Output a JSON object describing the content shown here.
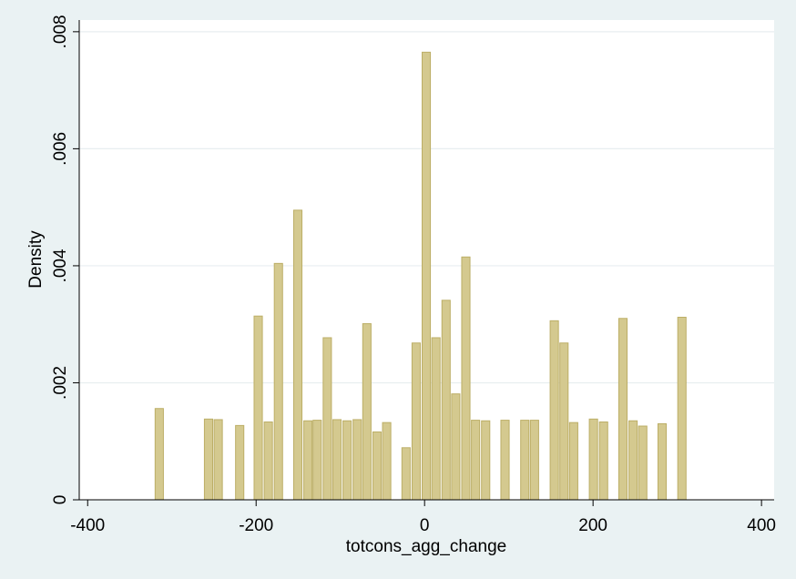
{
  "chart_data": {
    "type": "bar",
    "title": "",
    "xlabel": "totcons_agg_change",
    "ylabel": "Density",
    "xlim": [
      -410,
      415
    ],
    "ylim": [
      0,
      0.0082
    ],
    "x_ticks": [
      {
        "value": -400,
        "label": "-400"
      },
      {
        "value": -200,
        "label": "-200"
      },
      {
        "value": 0,
        "label": "0"
      },
      {
        "value": 200,
        "label": "200"
      },
      {
        "value": 400,
        "label": "400"
      }
    ],
    "y_ticks": [
      {
        "value": 0,
        "label": "0"
      },
      {
        "value": 0.002,
        "label": ".002"
      },
      {
        "value": 0.004,
        "label": ".004"
      },
      {
        "value": 0.006,
        "label": ".006"
      },
      {
        "value": 0.008,
        "label": ".008"
      }
    ],
    "grid": true,
    "bin_width": 10.9,
    "bars": [
      {
        "x": -315.0,
        "density": 0.00156
      },
      {
        "x": -256.5,
        "density": 0.00138
      },
      {
        "x": -245.0,
        "density": 0.00137
      },
      {
        "x": -219.5,
        "density": 0.00127
      },
      {
        "x": -197.5,
        "density": 0.00314
      },
      {
        "x": -185.5,
        "density": 0.00133
      },
      {
        "x": -173.5,
        "density": 0.00404
      },
      {
        "x": -150.5,
        "density": 0.00495
      },
      {
        "x": -138.5,
        "density": 0.00135
      },
      {
        "x": -127.5,
        "density": 0.00136
      },
      {
        "x": -115.5,
        "density": 0.00277
      },
      {
        "x": -104.0,
        "density": 0.00137
      },
      {
        "x": -92.0,
        "density": 0.00135
      },
      {
        "x": -80.0,
        "density": 0.00137
      },
      {
        "x": -68.5,
        "density": 0.00301
      },
      {
        "x": -56.5,
        "density": 0.00116
      },
      {
        "x": -45.0,
        "density": 0.00132
      },
      {
        "x": -22.0,
        "density": 0.00089
      },
      {
        "x": -10.0,
        "density": 0.00268
      },
      {
        "x": 2.0,
        "density": 0.00765
      },
      {
        "x": 13.5,
        "density": 0.00277
      },
      {
        "x": 25.5,
        "density": 0.00341
      },
      {
        "x": 37.0,
        "density": 0.00181
      },
      {
        "x": 49.0,
        "density": 0.00415
      },
      {
        "x": 60.5,
        "density": 0.00136
      },
      {
        "x": 72.5,
        "density": 0.00135
      },
      {
        "x": 95.5,
        "density": 0.00136
      },
      {
        "x": 119.0,
        "density": 0.00136
      },
      {
        "x": 130.5,
        "density": 0.00136
      },
      {
        "x": 154.0,
        "density": 0.00306
      },
      {
        "x": 165.5,
        "density": 0.00268
      },
      {
        "x": 177.0,
        "density": 0.00132
      },
      {
        "x": 200.5,
        "density": 0.00138
      },
      {
        "x": 212.5,
        "density": 0.00133
      },
      {
        "x": 235.5,
        "density": 0.0031
      },
      {
        "x": 247.5,
        "density": 0.00135
      },
      {
        "x": 259.0,
        "density": 0.00126
      },
      {
        "x": 282.0,
        "density": 0.0013
      },
      {
        "x": 305.5,
        "density": 0.00312
      }
    ],
    "colors": {
      "background": "#eaf2f3",
      "plot_area": "#ffffff",
      "bar_fill": "#d4c98f",
      "bar_stroke": "#bcae66",
      "grid": "#e8eef0",
      "axis": "#000000"
    }
  }
}
